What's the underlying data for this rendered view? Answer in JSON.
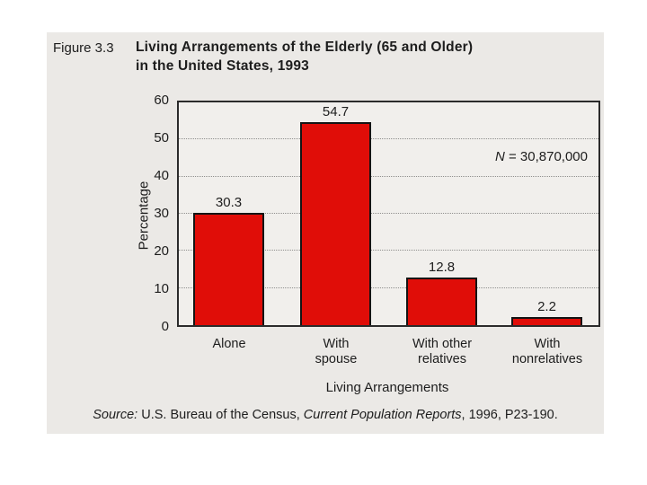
{
  "figure": {
    "label": "Figure 3.3",
    "title_line1": "Living Arrangements of the Elderly (65 and Older)",
    "title_line2": "in the United States, 1993"
  },
  "chart_data": {
    "type": "bar",
    "title": "Living Arrangements of the Elderly (65 and Older) in the United States, 1993",
    "categories": [
      "Alone",
      "With spouse",
      "With other relatives",
      "With nonrelatives"
    ],
    "categories_lines": [
      [
        "Alone",
        ""
      ],
      [
        "With",
        "spouse"
      ],
      [
        "With other",
        "relatives"
      ],
      [
        "With",
        "nonrelatives"
      ]
    ],
    "values": [
      30.3,
      54.7,
      12.8,
      2.2
    ],
    "xlabel": "Living Arrangements",
    "ylabel": "Percentage",
    "ylim": [
      0,
      60
    ],
    "yticks": [
      0,
      10,
      20,
      30,
      40,
      50,
      60
    ],
    "grid": "horizontal dotted gridlines at 10, 20, 30, 40, 50",
    "legend": "none",
    "annotation": "N = 30,870,000",
    "annotation_parts": {
      "symbol": "N",
      "rest": " = 30,870,000"
    },
    "bar_color": "#e00d08"
  },
  "source_line": {
    "prefix_italic": "Source:",
    "body": " U.S. Bureau of the Census, ",
    "work_italic": "Current Population Reports",
    "suffix": ", 1996, P23-190."
  },
  "colors": {
    "bar_red": "#e00d08",
    "panel_background": "#ebe9e6",
    "plot_background": "#f1efec",
    "text": "#1d1d1d"
  }
}
